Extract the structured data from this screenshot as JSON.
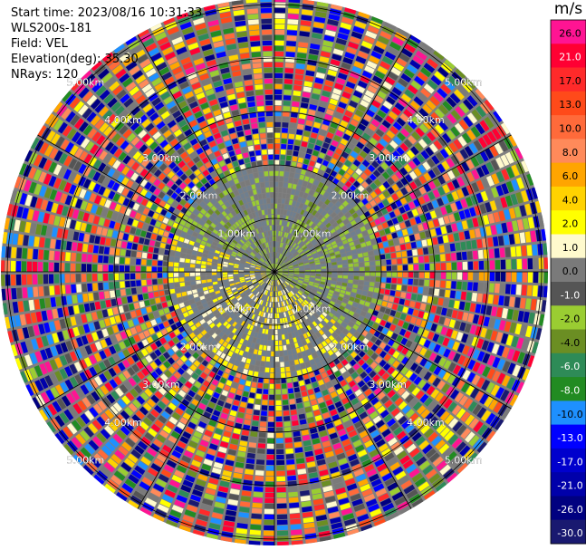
{
  "header": {
    "start_time": "Start time: 2023/08/16 10:31:33",
    "instrument": "WLS200s-181",
    "field": "Field: VEL",
    "elevation": "Elevation(deg): 35.30",
    "nrays": "NRays: 120"
  },
  "colorbar": {
    "unit": "m/s",
    "ticks": [
      "26.0",
      "21.0",
      "17.0",
      "13.0",
      "10.0",
      "8.0",
      "6.0",
      "4.0",
      "2.0",
      "1.0",
      "0.0",
      "-1.0",
      "-2.0",
      "-4.0",
      "-6.0",
      "-8.0",
      "-10.0",
      "-13.0",
      "-17.0",
      "-21.0",
      "-26.0",
      "-30.0"
    ],
    "colors": [
      "#ff1493",
      "#ff0033",
      "#ff2a2a",
      "#ff4a1a",
      "#ff6a3a",
      "#ff8a5a",
      "#ffa500",
      "#ffd200",
      "#ffff00",
      "#fffacd",
      "#7a7a7a",
      "#555555",
      "#9acd32",
      "#6b8e23",
      "#2e8b57",
      "#228b22",
      "#1e90ff",
      "#0000ff",
      "#0000cd",
      "#0000aa",
      "#000080",
      "#191970"
    ]
  },
  "chart_data": {
    "type": "heatmap",
    "title": "",
    "field": "VEL",
    "units": "m/s",
    "n_rays": 120,
    "elevation_deg": 35.3,
    "range_rings_km": [
      "1.00km",
      "2.00km",
      "3.00km",
      "4.00km",
      "5.00km"
    ],
    "ring_labels": [
      "1.00km",
      "1.00km",
      "1.00km",
      "1.00km",
      "2.00km",
      "2.00km",
      "2.00km",
      "2.00km",
      "3.00km",
      "3.00km",
      "3.00km",
      "3.00km",
      "4.00km",
      "4.00km",
      "4.00km",
      "4.00km",
      "5.00km",
      "5.00km",
      "5.00km",
      "5.00km"
    ],
    "value_range": [
      -30.0,
      26.0
    ],
    "description": "Near-range region shows mostly near-zero velocities (grey), a yellow/light positive band (1-4 m/s) and green negative band (-1 to -4 m/s); beyond ~2 km the data are noisy across the full colour scale."
  }
}
